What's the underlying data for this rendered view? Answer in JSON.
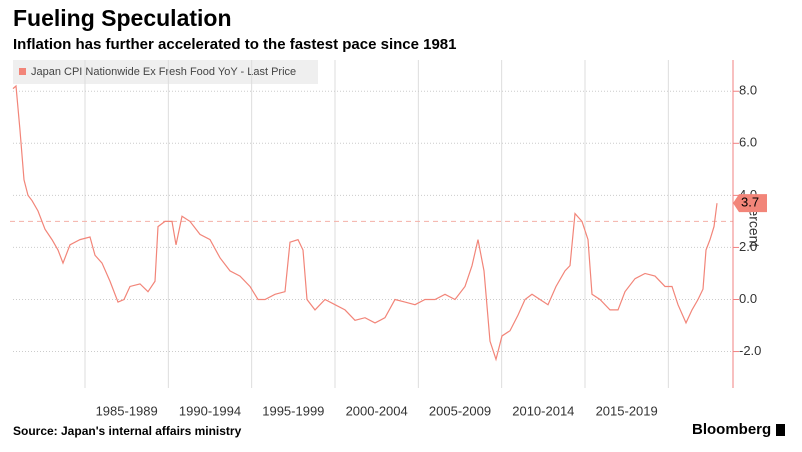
{
  "chart_data": {
    "type": "line",
    "title": "Fueling Speculation",
    "subtitle": "Inflation has further accelerated to the fastest pace since 1981",
    "y_label": "percent",
    "source": "Source: Japan's internal affairs ministry",
    "brand": "Bloomberg",
    "series": [
      {
        "name": "Japan CPI Nationwide Ex Fresh Food YoY - Last Price",
        "color": "#f28579",
        "x": [
          1980.68,
          1980.86,
          1981.1,
          1981.34,
          1981.58,
          1981.82,
          1982.18,
          1982.6,
          1983.02,
          1983.38,
          1983.68,
          1984.1,
          1984.7,
          1985.3,
          1985.6,
          1986.02,
          1986.5,
          1986.98,
          1987.34,
          1987.7,
          1988.3,
          1988.78,
          1989.2,
          1989.38,
          1989.8,
          1990.22,
          1990.46,
          1990.82,
          1991.3,
          1991.9,
          1992.5,
          1993.1,
          1993.7,
          1994.3,
          1994.9,
          1995.38,
          1995.8,
          1996.4,
          1997.0,
          1997.3,
          1997.78,
          1998.08,
          1998.32,
          1998.8,
          1999.4,
          2000.0,
          2000.6,
          2001.2,
          2001.8,
          2002.4,
          2003.0,
          2003.6,
          2004.2,
          2004.8,
          2005.4,
          2006.0,
          2006.6,
          2007.2,
          2007.8,
          2008.22,
          2008.58,
          2008.94,
          2009.3,
          2009.66,
          2010.02,
          2010.5,
          2010.98,
          2011.4,
          2011.82,
          2012.3,
          2012.78,
          2013.26,
          2013.8,
          2014.1,
          2014.4,
          2014.82,
          2015.18,
          2015.42,
          2015.9,
          2016.5,
          2016.98,
          2017.4,
          2018.0,
          2018.6,
          2019.2,
          2019.8,
          2020.22,
          2020.58,
          2021.06,
          2021.42,
          2021.78,
          2022.08,
          2022.26,
          2022.5,
          2022.74,
          2022.92
        ],
        "values": [
          8.1,
          8.2,
          6.5,
          4.6,
          4.0,
          3.8,
          3.4,
          2.7,
          2.3,
          1.9,
          1.4,
          2.1,
          2.3,
          2.4,
          1.7,
          1.4,
          0.7,
          -0.1,
          0.0,
          0.5,
          0.6,
          0.3,
          0.7,
          2.8,
          3.0,
          3.0,
          2.1,
          3.2,
          3.0,
          2.5,
          2.3,
          1.6,
          1.1,
          0.9,
          0.5,
          0.0,
          0.0,
          0.2,
          0.3,
          2.2,
          2.3,
          1.9,
          0.0,
          -0.4,
          0.0,
          -0.2,
          -0.4,
          -0.8,
          -0.7,
          -0.9,
          -0.7,
          0.0,
          -0.1,
          -0.2,
          0.0,
          0.0,
          0.2,
          0.0,
          0.5,
          1.3,
          2.3,
          1.1,
          -1.6,
          -2.3,
          -1.4,
          -1.2,
          -0.6,
          0.0,
          0.2,
          0.0,
          -0.2,
          0.5,
          1.1,
          1.3,
          3.3,
          3.0,
          2.3,
          0.2,
          0.0,
          -0.4,
          -0.4,
          0.3,
          0.8,
          1.0,
          0.9,
          0.5,
          0.5,
          -0.2,
          -0.9,
          -0.4,
          0.0,
          0.4,
          1.9,
          2.3,
          2.8,
          3.7
        ]
      }
    ],
    "reference_line": 3.0,
    "xlim": [
      1980.68,
      2023.88
    ],
    "xgrid": [
      1985,
      1990,
      1995,
      2000,
      2005,
      2010,
      2015,
      2020
    ],
    "xticks": [
      {
        "value": 1987.5,
        "label": "1985-1989"
      },
      {
        "value": 1992.5,
        "label": "1990-1994"
      },
      {
        "value": 1997.5,
        "label": "1995-1999"
      },
      {
        "value": 2002.5,
        "label": "2000-2004"
      },
      {
        "value": 2007.5,
        "label": "2005-2009"
      },
      {
        "value": 2012.5,
        "label": "2010-2014"
      },
      {
        "value": 2017.5,
        "label": "2015-2019"
      }
    ],
    "ylim": [
      -3.4,
      9.2
    ],
    "yticks": [
      {
        "value": -2,
        "label": "-2.0"
      },
      {
        "value": 0,
        "label": "0.0"
      },
      {
        "value": 2,
        "label": "2.0"
      },
      {
        "value": 4,
        "label": "4.0"
      },
      {
        "value": 6,
        "label": "6.0"
      },
      {
        "value": 8,
        "label": "8.0"
      }
    ],
    "grid": true,
    "axis_color": "#f08080"
  }
}
